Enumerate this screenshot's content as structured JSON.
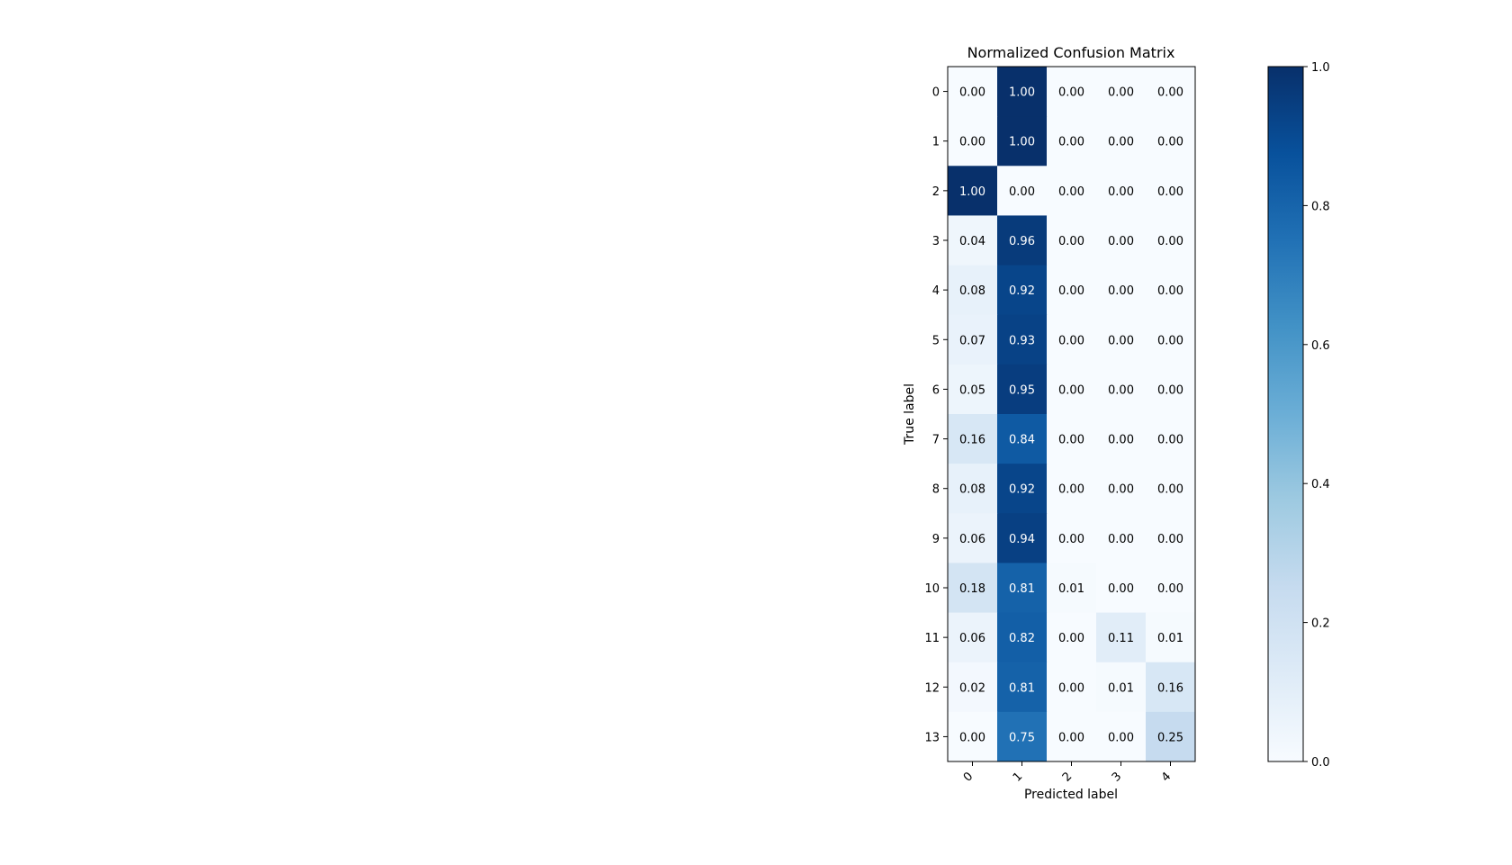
{
  "chart_data": {
    "type": "heatmap",
    "title": "Normalized Confusion Matrix",
    "xlabel": "Predicted label",
    "ylabel": "True label",
    "x_categories": [
      "0",
      "1",
      "2",
      "3",
      "4"
    ],
    "y_categories": [
      "0",
      "1",
      "2",
      "3",
      "4",
      "5",
      "6",
      "7",
      "8",
      "9",
      "10",
      "11",
      "12",
      "13"
    ],
    "values": [
      [
        0.0,
        1.0,
        0.0,
        0.0,
        0.0
      ],
      [
        0.0,
        1.0,
        0.0,
        0.0,
        0.0
      ],
      [
        1.0,
        0.0,
        0.0,
        0.0,
        0.0
      ],
      [
        0.04,
        0.96,
        0.0,
        0.0,
        0.0
      ],
      [
        0.08,
        0.92,
        0.0,
        0.0,
        0.0
      ],
      [
        0.07,
        0.93,
        0.0,
        0.0,
        0.0
      ],
      [
        0.05,
        0.95,
        0.0,
        0.0,
        0.0
      ],
      [
        0.16,
        0.84,
        0.0,
        0.0,
        0.0
      ],
      [
        0.08,
        0.92,
        0.0,
        0.0,
        0.0
      ],
      [
        0.06,
        0.94,
        0.0,
        0.0,
        0.0
      ],
      [
        0.18,
        0.81,
        0.01,
        0.0,
        0.0
      ],
      [
        0.06,
        0.82,
        0.0,
        0.11,
        0.01
      ],
      [
        0.02,
        0.81,
        0.0,
        0.01,
        0.16
      ],
      [
        0.0,
        0.75,
        0.0,
        0.0,
        0.25
      ]
    ],
    "colormap": "Blues",
    "colorbar": {
      "range": [
        0.0,
        1.0
      ],
      "ticks": [
        "0.0",
        "0.2",
        "0.4",
        "0.6",
        "0.8",
        "1.0"
      ]
    }
  }
}
